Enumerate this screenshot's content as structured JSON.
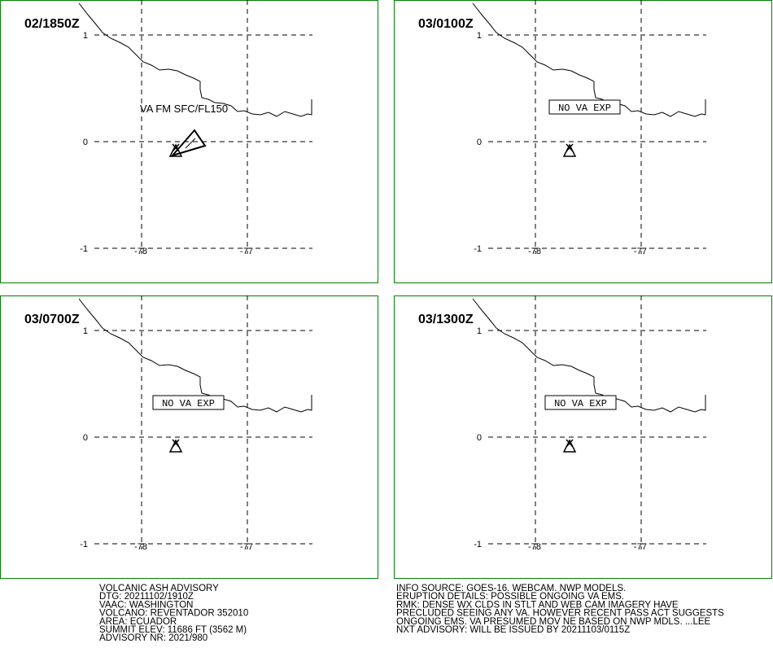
{
  "panels": [
    {
      "time": "02/1850Z",
      "y_labels": [
        "1",
        "0",
        "-1"
      ],
      "x_labels": [
        "-78",
        "-77"
      ],
      "annotation": "VA FM SFC/FL150"
    },
    {
      "time": "03/0100Z",
      "y_labels": [
        "1",
        "0",
        "-1"
      ],
      "x_labels": [
        "-78",
        "-77"
      ],
      "annotation": "NO VA EXP"
    },
    {
      "time": "03/0700Z",
      "y_labels": [
        "1",
        "0",
        "-1"
      ],
      "x_labels": [
        "-78",
        "-77"
      ],
      "annotation": "NO VA EXP"
    },
    {
      "time": "03/1300Z",
      "y_labels": [
        "1",
        "0",
        "-1"
      ],
      "x_labels": [
        "-78",
        "-77"
      ],
      "annotation": "NO VA EXP"
    }
  ],
  "advisory": {
    "left": [
      "VOLCANIC ASH ADVISORY",
      "DTG: 20211102/1910Z",
      "VAAC: WASHINGTON",
      "VOLCANO: REVENTADOR 352010",
      "AREA: ECUADOR",
      "SUMMIT ELEV: 11686 FT (3562 M)",
      "ADVISORY NR: 2021/980"
    ],
    "right": [
      "INFO SOURCE: GOES-16. WEBCAM. NWP MODELS.",
      "ERUPTION DETAILS: POSSIBLE ONGOING VA EMS.",
      "RMK: DENSE WX CLDS IN STLT AND WEB CAM IMAGERY HAVE",
      "PRECLUDED SEEING ANY VA. HOWEVER RECENT PASS ACT SUGGESTS",
      "ONGOING EMS. VA PRESUMED MOV NE BASED ON NWP MDLS. ...LEE",
      "NXT ADVISORY: WILL BE ISSUED BY 20211103/0115Z"
    ]
  }
}
